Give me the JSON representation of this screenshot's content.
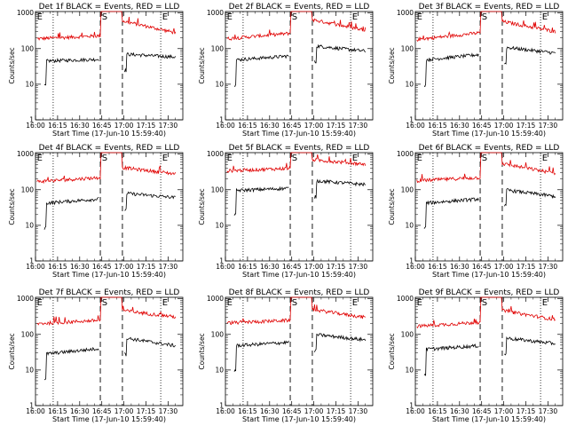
{
  "chart_data": {
    "type": "line",
    "layout": "3x3 grid",
    "shared": {
      "ylabel": "Counts/sec",
      "xlabel": "Start Time (17-Jun-10 15:59:40)",
      "x_tick_labels": [
        "16:00",
        "16:15",
        "16:30",
        "16:45",
        "17:00",
        "17:15",
        "17:30"
      ],
      "x_ticks_min": [
        0,
        15,
        30,
        45,
        60,
        75,
        90
      ],
      "xlim_min": [
        0,
        100
      ],
      "y_tick_labels": [
        "1",
        "10",
        "100",
        "1000"
      ],
      "ylim": [
        1,
        1100
      ],
      "yscale": "log",
      "series_colors": {
        "events": "#000000",
        "lld": "#e00000"
      },
      "dashed_vlines_min": [
        44,
        59
      ],
      "dotted_vlines_min": [
        12,
        85
      ],
      "marker_labels": [
        "E",
        "S",
        "E"
      ],
      "marker_x_min": [
        1,
        45,
        86
      ]
    },
    "panels": [
      {
        "title": "Det 1f BLACK = Events, RED = LLD",
        "events": [
          45,
          50,
          70,
          58
        ],
        "lld": [
          190,
          230,
          600,
          280
        ]
      },
      {
        "title": "Det 2f BLACK = Events, RED = LLD",
        "events": [
          48,
          62,
          120,
          85
        ],
        "lld": [
          190,
          270,
          650,
          330
        ]
      },
      {
        "title": "Det 3f BLACK = Events, RED = LLD",
        "events": [
          48,
          68,
          110,
          75
        ],
        "lld": [
          180,
          280,
          580,
          300
        ]
      },
      {
        "title": "Det 4f BLACK = Events, RED = LLD",
        "events": [
          42,
          55,
          80,
          60
        ],
        "lld": [
          170,
          220,
          420,
          280
        ]
      },
      {
        "title": "Det 5f BLACK = Events, RED = LLD",
        "events": [
          95,
          110,
          180,
          140
        ],
        "lld": [
          340,
          400,
          700,
          520
        ]
      },
      {
        "title": "Det 6f BLACK = Events, RED = LLD",
        "events": [
          42,
          55,
          100,
          65
        ],
        "lld": [
          180,
          220,
          540,
          290
        ]
      },
      {
        "title": "Det 7f BLACK = Events, RED = LLD",
        "events": [
          28,
          40,
          80,
          48
        ],
        "lld": [
          200,
          250,
          470,
          310
        ]
      },
      {
        "title": "Det 8f BLACK = Events, RED = LLD",
        "events": [
          48,
          60,
          100,
          70
        ],
        "lld": [
          210,
          250,
          500,
          300
        ]
      },
      {
        "title": "Det 9f BLACK = Events, RED = LLD",
        "events": [
          38,
          48,
          80,
          55
        ],
        "lld": [
          170,
          220,
          470,
          260
        ]
      }
    ]
  }
}
